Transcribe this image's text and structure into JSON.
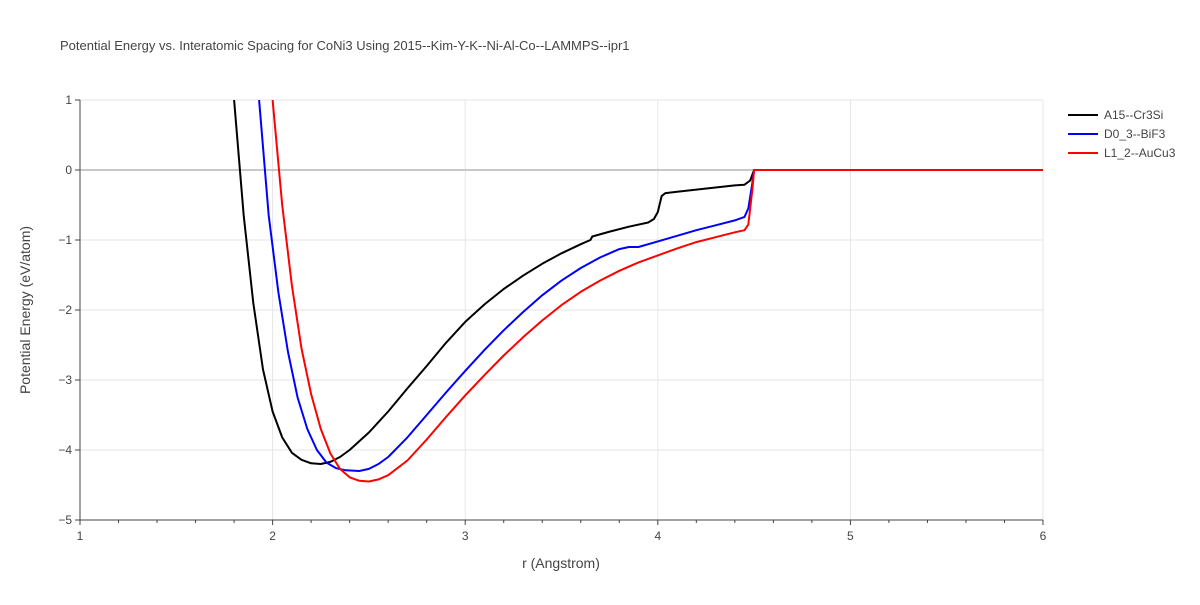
{
  "chart_data": {
    "type": "line",
    "title": "Potential Energy vs. Interatomic Spacing for CoNi3 Using 2015--Kim-Y-K--Ni-Al-Co--LAMMPS--ipr1",
    "xlabel": "r (Angstrom)",
    "ylabel": "Potential Energy (eV/atom)",
    "xlim": [
      1,
      6
    ],
    "ylim": [
      -5,
      1
    ],
    "x_ticks": [
      1,
      2,
      3,
      4,
      5,
      6
    ],
    "y_ticks": [
      1,
      0,
      -1,
      -2,
      -3,
      -4,
      -5
    ],
    "x_tick_labels": [
      "1",
      "2",
      "3",
      "4",
      "5",
      "6"
    ],
    "y_tick_labels": [
      "1",
      "0",
      "−1",
      "−2",
      "−3",
      "−4",
      "−5"
    ],
    "grid": true,
    "legend_position": "top-right",
    "series": [
      {
        "name": "A15--Cr3Si",
        "color": "#000000",
        "points": [
          [
            1.8,
            1.0
          ],
          [
            1.85,
            -0.65
          ],
          [
            1.9,
            -1.9
          ],
          [
            1.95,
            -2.85
          ],
          [
            2.0,
            -3.45
          ],
          [
            2.05,
            -3.82
          ],
          [
            2.1,
            -4.04
          ],
          [
            2.15,
            -4.14
          ],
          [
            2.2,
            -4.19
          ],
          [
            2.25,
            -4.2
          ],
          [
            2.3,
            -4.17
          ],
          [
            2.35,
            -4.1
          ],
          [
            2.4,
            -4.0
          ],
          [
            2.5,
            -3.75
          ],
          [
            2.6,
            -3.45
          ],
          [
            2.7,
            -3.12
          ],
          [
            2.8,
            -2.8
          ],
          [
            2.9,
            -2.47
          ],
          [
            3.0,
            -2.17
          ],
          [
            3.1,
            -1.92
          ],
          [
            3.2,
            -1.7
          ],
          [
            3.3,
            -1.51
          ],
          [
            3.4,
            -1.34
          ],
          [
            3.5,
            -1.19
          ],
          [
            3.6,
            -1.06
          ],
          [
            3.65,
            -1.0
          ],
          [
            3.66,
            -0.95
          ],
          [
            3.75,
            -0.88
          ],
          [
            3.85,
            -0.81
          ],
          [
            3.95,
            -0.75
          ],
          [
            3.98,
            -0.7
          ],
          [
            4.0,
            -0.6
          ],
          [
            4.02,
            -0.37
          ],
          [
            4.04,
            -0.33
          ],
          [
            4.1,
            -0.31
          ],
          [
            4.2,
            -0.28
          ],
          [
            4.3,
            -0.25
          ],
          [
            4.4,
            -0.22
          ],
          [
            4.45,
            -0.21
          ],
          [
            4.48,
            -0.15
          ],
          [
            4.5,
            0.0
          ],
          [
            6.0,
            0.0
          ]
        ]
      },
      {
        "name": "D0_3--BiF3",
        "color": "#0000ff",
        "points": [
          [
            1.93,
            1.0
          ],
          [
            1.98,
            -0.65
          ],
          [
            2.03,
            -1.75
          ],
          [
            2.08,
            -2.6
          ],
          [
            2.13,
            -3.25
          ],
          [
            2.18,
            -3.7
          ],
          [
            2.23,
            -4.0
          ],
          [
            2.28,
            -4.18
          ],
          [
            2.33,
            -4.26
          ],
          [
            2.38,
            -4.29
          ],
          [
            2.45,
            -4.3
          ],
          [
            2.5,
            -4.27
          ],
          [
            2.55,
            -4.2
          ],
          [
            2.6,
            -4.1
          ],
          [
            2.7,
            -3.82
          ],
          [
            2.8,
            -3.5
          ],
          [
            2.9,
            -3.18
          ],
          [
            3.0,
            -2.87
          ],
          [
            3.1,
            -2.57
          ],
          [
            3.2,
            -2.29
          ],
          [
            3.3,
            -2.03
          ],
          [
            3.4,
            -1.79
          ],
          [
            3.5,
            -1.58
          ],
          [
            3.6,
            -1.4
          ],
          [
            3.7,
            -1.25
          ],
          [
            3.8,
            -1.13
          ],
          [
            3.85,
            -1.1
          ],
          [
            3.9,
            -1.1
          ],
          [
            4.0,
            -1.02
          ],
          [
            4.1,
            -0.94
          ],
          [
            4.2,
            -0.86
          ],
          [
            4.3,
            -0.79
          ],
          [
            4.4,
            -0.72
          ],
          [
            4.45,
            -0.67
          ],
          [
            4.47,
            -0.55
          ],
          [
            4.49,
            -0.2
          ],
          [
            4.5,
            0.0
          ],
          [
            6.0,
            0.0
          ]
        ]
      },
      {
        "name": "L1_2--AuCu3",
        "color": "#ff0000",
        "points": [
          [
            2.0,
            1.0
          ],
          [
            2.05,
            -0.5
          ],
          [
            2.1,
            -1.65
          ],
          [
            2.15,
            -2.55
          ],
          [
            2.2,
            -3.2
          ],
          [
            2.25,
            -3.7
          ],
          [
            2.3,
            -4.05
          ],
          [
            2.35,
            -4.27
          ],
          [
            2.4,
            -4.39
          ],
          [
            2.45,
            -4.44
          ],
          [
            2.5,
            -4.45
          ],
          [
            2.55,
            -4.42
          ],
          [
            2.6,
            -4.36
          ],
          [
            2.7,
            -4.15
          ],
          [
            2.8,
            -3.85
          ],
          [
            2.9,
            -3.53
          ],
          [
            3.0,
            -3.22
          ],
          [
            3.1,
            -2.93
          ],
          [
            3.2,
            -2.65
          ],
          [
            3.3,
            -2.39
          ],
          [
            3.4,
            -2.15
          ],
          [
            3.5,
            -1.93
          ],
          [
            3.6,
            -1.74
          ],
          [
            3.7,
            -1.58
          ],
          [
            3.8,
            -1.44
          ],
          [
            3.9,
            -1.32
          ],
          [
            4.0,
            -1.22
          ],
          [
            4.1,
            -1.12
          ],
          [
            4.2,
            -1.03
          ],
          [
            4.3,
            -0.96
          ],
          [
            4.4,
            -0.89
          ],
          [
            4.45,
            -0.86
          ],
          [
            4.47,
            -0.78
          ],
          [
            4.49,
            -0.3
          ],
          [
            4.5,
            0.0
          ],
          [
            6.0,
            0.0
          ]
        ]
      }
    ]
  }
}
